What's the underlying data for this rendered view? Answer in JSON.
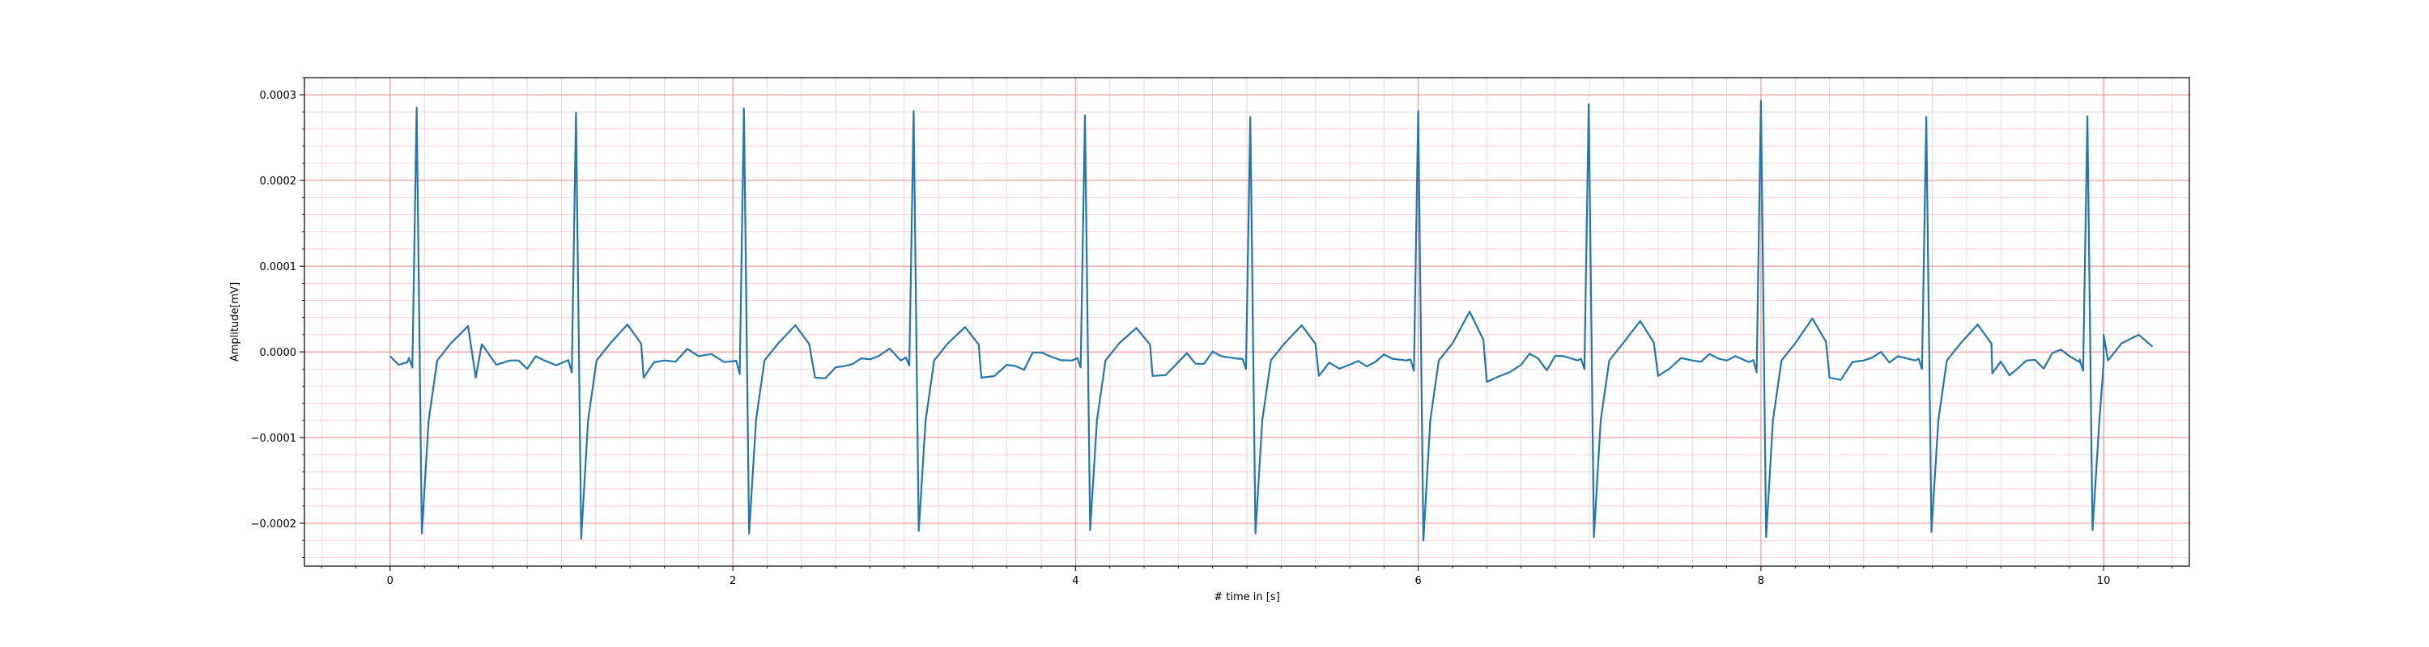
{
  "chart_data": {
    "type": "line",
    "title": "",
    "xlabel": "# time in [s]",
    "ylabel": "Amplitude[mV]",
    "xlim": [
      -0.5,
      10.5
    ],
    "ylim": [
      -0.00025,
      0.00032
    ],
    "x_ticks": [
      0,
      2,
      4,
      6,
      8,
      10
    ],
    "x_tick_labels": [
      "0",
      "2",
      "4",
      "6",
      "8",
      "10"
    ],
    "y_ticks": [
      -0.0002,
      -0.0001,
      0.0,
      0.0001,
      0.0002,
      0.0003
    ],
    "y_tick_labels": [
      "−0.0002",
      "−0.0001",
      "0.0000",
      "0.0001",
      "0.0002",
      "0.0003"
    ],
    "grid": {
      "major": true,
      "minor": true,
      "major_color": "#f08080",
      "minor_color": "#f7c6d0"
    },
    "line_color": "#1f77b4",
    "beats": [
      {
        "t": 0.155,
        "r": 0.000285,
        "s": -0.000212,
        "q": -1.8e-05,
        "tw": 3e-05,
        "tw_dt": 0.3
      },
      {
        "t": 1.085,
        "r": 0.000279,
        "s": -0.000218,
        "q": -2.4e-05,
        "tw": 3.2e-05,
        "tw_dt": 0.3
      },
      {
        "t": 2.065,
        "r": 0.000284,
        "s": -0.000212,
        "q": -2.6e-05,
        "tw": 3.1e-05,
        "tw_dt": 0.3
      },
      {
        "t": 3.055,
        "r": 0.000281,
        "s": -0.000209,
        "q": -1.6e-05,
        "tw": 2.9e-05,
        "tw_dt": 0.3
      },
      {
        "t": 4.055,
        "r": 0.000276,
        "s": -0.000208,
        "q": -1.8e-05,
        "tw": 2.8e-05,
        "tw_dt": 0.3
      },
      {
        "t": 5.02,
        "r": 0.000274,
        "s": -0.000212,
        "q": -2e-05,
        "tw": 3.1e-05,
        "tw_dt": 0.3
      },
      {
        "t": 6.0,
        "r": 0.000281,
        "s": -0.00022,
        "q": -2.2e-05,
        "tw": 4.7e-05,
        "tw_dt": 0.3
      },
      {
        "t": 6.995,
        "r": 0.000289,
        "s": -0.000216,
        "q": -2e-05,
        "tw": 3.6e-05,
        "tw_dt": 0.3
      },
      {
        "t": 8.0,
        "r": 0.000293,
        "s": -0.000216,
        "q": -2.4e-05,
        "tw": 3.9e-05,
        "tw_dt": 0.3
      },
      {
        "t": 8.965,
        "r": 0.000274,
        "s": -0.00021,
        "q": -2e-05,
        "tw": 3.2e-05,
        "tw_dt": 0.3
      },
      {
        "t": 9.905,
        "r": 0.000275,
        "s": -0.000208,
        "q": -2.2e-05,
        "tw": 2e-05,
        "tw_dt": 0.3
      }
    ],
    "baseline_points": [
      [
        0.0,
        -5e-06
      ],
      [
        0.05,
        -1.5e-05
      ],
      [
        0.1,
        -1.2e-05
      ],
      [
        0.5,
        -3e-05
      ],
      [
        0.62,
        -1.5e-05
      ],
      [
        0.7,
        -1e-05
      ],
      [
        0.9,
        -1e-05
      ],
      [
        1.48,
        -3e-05
      ],
      [
        1.6,
        -1e-05
      ],
      [
        1.8,
        -5e-06
      ],
      [
        1.95,
        -1.2e-05
      ],
      [
        2.48,
        -3e-05
      ],
      [
        2.6,
        -1.8e-05
      ],
      [
        2.85,
        -5e-06
      ],
      [
        2.98,
        -1e-05
      ],
      [
        3.45,
        -3e-05
      ],
      [
        3.6,
        -1.5e-05
      ],
      [
        3.85,
        -5e-06
      ],
      [
        3.98,
        -1e-05
      ],
      [
        4.45,
        -2.8e-05
      ],
      [
        4.6,
        -1.2e-05
      ],
      [
        4.85,
        -5e-06
      ],
      [
        4.95,
        -8e-06
      ],
      [
        5.42,
        -2.8e-05
      ],
      [
        5.6,
        -1.5e-05
      ],
      [
        5.85,
        -8e-06
      ],
      [
        5.93,
        -1e-05
      ],
      [
        6.4,
        -3.5e-05
      ],
      [
        6.6,
        -1.5e-05
      ],
      [
        6.85,
        -5e-06
      ],
      [
        6.93,
        -1e-05
      ],
      [
        7.4,
        -2.8e-05
      ],
      [
        7.6,
        -1e-05
      ],
      [
        7.85,
        -5e-06
      ],
      [
        7.93,
        -1.2e-05
      ],
      [
        8.4,
        -3e-05
      ],
      [
        8.6,
        -1e-05
      ],
      [
        8.8,
        -5e-06
      ],
      [
        8.9,
        -1e-05
      ],
      [
        9.35,
        -2.5e-05
      ],
      [
        9.55,
        -1e-05
      ],
      [
        9.8,
        -5e-06
      ],
      [
        9.86,
        -1.2e-05
      ],
      [
        10.0,
        -1.2e-05
      ]
    ],
    "end_point": [
      10.0,
      2e-05
    ]
  }
}
